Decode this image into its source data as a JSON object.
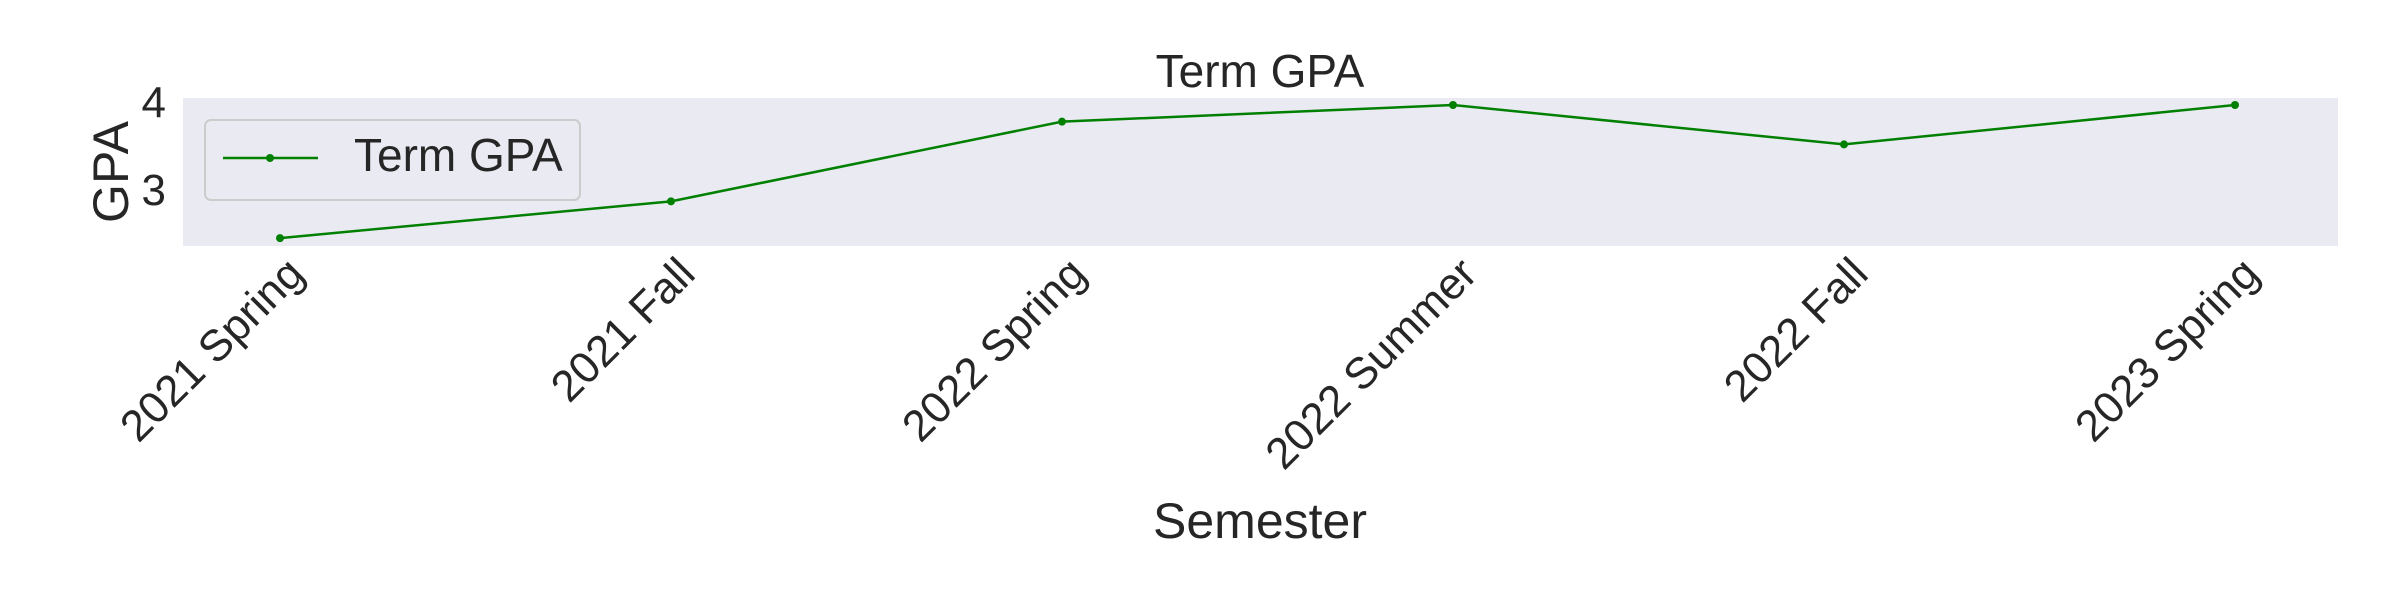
{
  "chart_data": {
    "type": "line",
    "title": "Term GPA",
    "xlabel": "Semester",
    "ylabel": "GPA",
    "categories": [
      "2021 Spring",
      "2021 Fall",
      "2022 Spring",
      "2022 Summer",
      "2022 Fall",
      "2023 Spring"
    ],
    "series": [
      {
        "name": "Term GPA",
        "values": [
          2.45,
          2.87,
          3.78,
          3.97,
          3.52,
          3.97
        ],
        "color": "#008000"
      }
    ],
    "yticks": [
      3,
      4
    ],
    "ylim": [
      2.36,
      4.05
    ],
    "grid": false,
    "legend_position": "upper-left",
    "background_color": "#eaeaf2"
  }
}
